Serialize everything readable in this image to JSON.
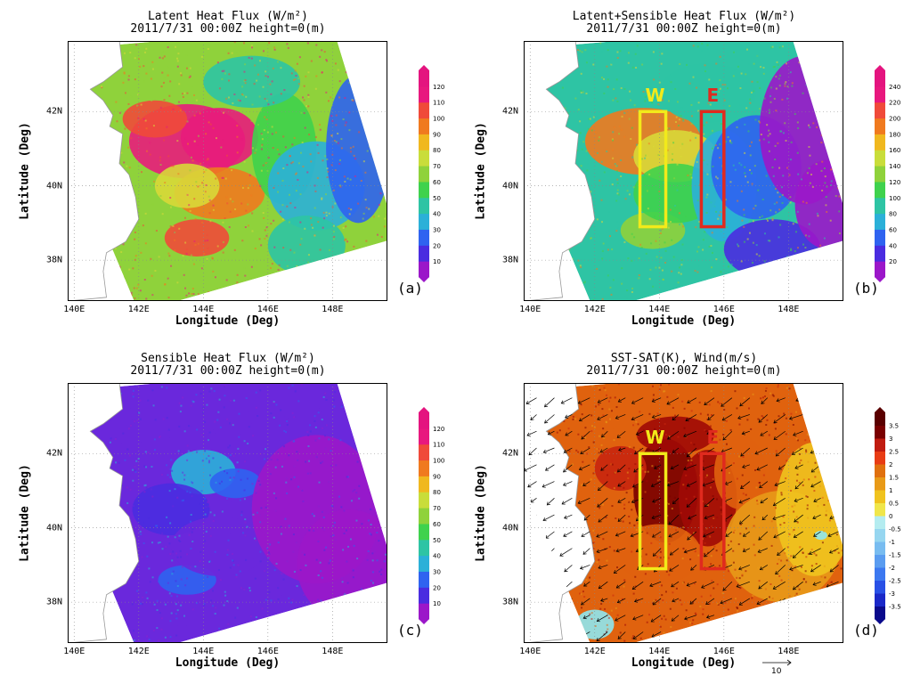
{
  "panels": [
    {
      "id": "a",
      "title": "Latent Heat Flux (W/m²)",
      "subtitle": "2011/7/31 00:00Z height=0(m)",
      "xlabel": "Longitude (Deg)",
      "ylabel": "Latitude (Deg)",
      "panel_label": "(a)",
      "colorbar": {
        "levels": [
          "10",
          "20",
          "30",
          "40",
          "50",
          "60",
          "70",
          "80",
          "90",
          "100",
          "110",
          "120"
        ],
        "colors": [
          "#9b17c9",
          "#4a2ce0",
          "#2f63f0",
          "#2bb0d8",
          "#2ec4a4",
          "#3fd24d",
          "#8fd23b",
          "#c9dd3a",
          "#f0b81f",
          "#f07a1f",
          "#f04a3a",
          "#e8187e",
          "#e4147f"
        ]
      },
      "field_colors": [
        "#e81c7c",
        "#f04a3a",
        "#f07a1f",
        "#d8d838",
        "#8fd23b",
        "#3fd24d",
        "#2ec4a4",
        "#2bb0d8",
        "#2f63f0"
      ]
    },
    {
      "id": "b",
      "title": "Latent+Sensible Heat Flux (W/m²)",
      "subtitle": "2011/7/31 00:00Z height=0(m)",
      "xlabel": "Longitude (Deg)",
      "ylabel": "Latitude (Deg)",
      "panel_label": "(b)",
      "colorbar": {
        "levels": [
          "20",
          "40",
          "60",
          "80",
          "100",
          "120",
          "140",
          "160",
          "180",
          "200",
          "220",
          "240"
        ],
        "colors": [
          "#9b17c9",
          "#4a2ce0",
          "#2f63f0",
          "#2bb0d8",
          "#2ec4a4",
          "#3fd24d",
          "#8fd23b",
          "#c9dd3a",
          "#f0b81f",
          "#f07a1f",
          "#f04a3a",
          "#e8187e",
          "#e4147f"
        ]
      },
      "field_colors": [
        "#f07a1f",
        "#d8d838",
        "#8fd23b",
        "#3fd24d",
        "#2ec4a4",
        "#2bb0d8",
        "#2f63f0",
        "#4a2ce0",
        "#9b17c9"
      ],
      "boxes": [
        {
          "label": "W",
          "color": "#f2ea1a",
          "lon": [
            143.4,
            144.2
          ],
          "lat": [
            38.9,
            42.0
          ]
        },
        {
          "label": "E",
          "color": "#e02a1e",
          "lon": [
            145.3,
            146.0
          ],
          "lat": [
            38.9,
            42.0
          ]
        }
      ]
    },
    {
      "id": "c",
      "title": "Sensible Heat Flux (W/m²)",
      "subtitle": "2011/7/31 00:00Z height=0(m)",
      "xlabel": "Longitude (Deg)",
      "ylabel": "Latitude (Deg)",
      "panel_label": "(c)",
      "colorbar": {
        "levels": [
          "10",
          "20",
          "30",
          "40",
          "50",
          "60",
          "70",
          "80",
          "90",
          "100",
          "110",
          "120"
        ],
        "colors": [
          "#9b17c9",
          "#4a2ce0",
          "#2f63f0",
          "#2bb0d8",
          "#2ec4a4",
          "#3fd24d",
          "#8fd23b",
          "#c9dd3a",
          "#f0b81f",
          "#f07a1f",
          "#f04a3a",
          "#e8187e",
          "#e4147f"
        ]
      },
      "field_colors": [
        "#2bb0d8",
        "#2f63f0",
        "#4a2ce0",
        "#6a28dc",
        "#8a20d0",
        "#9b17c9"
      ]
    },
    {
      "id": "d",
      "title": "SST-SAT(K), Wind(m/s)",
      "subtitle": "2011/7/31 00:00Z height=0(m)",
      "xlabel": "Longitude (Deg)",
      "ylabel": "Latitude (Deg)",
      "panel_label": "(d)",
      "colorbar": {
        "levels": [
          "-3.5",
          "-3",
          "-2.5",
          "-2",
          "-1.5",
          "-1",
          "-0.5",
          "0",
          "0.5",
          "1",
          "1.5",
          "2",
          "2.5",
          "3",
          "3.5"
        ],
        "colors": [
          "#0a0a8c",
          "#1a28c8",
          "#2850e6",
          "#3c78f0",
          "#5a9cf0",
          "#78bcf0",
          "#96d6f0",
          "#b4ecf0",
          "#f0e64a",
          "#f0c31e",
          "#e89a18",
          "#e0700e",
          "#e83c14",
          "#c01c10",
          "#7a0000",
          "#5a0000"
        ]
      },
      "field_colors": [
        "#7a0000",
        "#a00a05",
        "#c8260e",
        "#e0620e",
        "#e89a18",
        "#f0c31e",
        "#8fe8f0"
      ],
      "reference_vector_label": "10",
      "boxes": [
        {
          "label": "W",
          "color": "#f2ea1a",
          "lon": [
            143.4,
            144.2
          ],
          "lat": [
            38.9,
            42.0
          ]
        },
        {
          "label": "E",
          "color": "#e02a1e",
          "lon": [
            145.3,
            146.0
          ],
          "lat": [
            38.9,
            42.0
          ]
        }
      ]
    }
  ],
  "x_ticks": [
    "140E",
    "142E",
    "144E",
    "146E",
    "148E"
  ],
  "y_ticks": [
    "38N",
    "40N",
    "42N"
  ],
  "chart_data": [
    {
      "type": "heatmap",
      "title": "Latent Heat Flux (W/m²)",
      "xlabel": "Longitude (Deg)",
      "ylabel": "Latitude (Deg)",
      "xlim": [
        139.8,
        149.7
      ],
      "ylim": [
        36.9,
        43.9
      ],
      "x_ticks": [
        140,
        142,
        144,
        146,
        148
      ],
      "y_ticks": [
        38,
        40,
        42
      ],
      "colorbar_levels": [
        10,
        20,
        30,
        40,
        50,
        60,
        70,
        80,
        90,
        100,
        110,
        120
      ],
      "units": "W/m²"
    },
    {
      "type": "heatmap",
      "title": "Latent+Sensible Heat Flux (W/m²)",
      "xlabel": "Longitude (Deg)",
      "ylabel": "Latitude (Deg)",
      "xlim": [
        139.8,
        149.7
      ],
      "ylim": [
        36.9,
        43.9
      ],
      "x_ticks": [
        140,
        142,
        144,
        146,
        148
      ],
      "y_ticks": [
        38,
        40,
        42
      ],
      "colorbar_levels": [
        20,
        40,
        60,
        80,
        100,
        120,
        140,
        160,
        180,
        200,
        220,
        240
      ],
      "units": "W/m²",
      "annotations": [
        "W",
        "E"
      ]
    },
    {
      "type": "heatmap",
      "title": "Sensible Heat Flux (W/m²)",
      "xlabel": "Longitude (Deg)",
      "ylabel": "Latitude (Deg)",
      "xlim": [
        139.8,
        149.7
      ],
      "ylim": [
        36.9,
        43.9
      ],
      "x_ticks": [
        140,
        142,
        144,
        146,
        148
      ],
      "y_ticks": [
        38,
        40,
        42
      ],
      "colorbar_levels": [
        10,
        20,
        30,
        40,
        50,
        60,
        70,
        80,
        90,
        100,
        110,
        120
      ],
      "units": "W/m²"
    },
    {
      "type": "heatmap",
      "title": "SST-SAT(K), Wind(m/s)",
      "xlabel": "Longitude (Deg)",
      "ylabel": "Latitude (Deg)",
      "xlim": [
        139.8,
        149.7
      ],
      "ylim": [
        36.9,
        43.9
      ],
      "x_ticks": [
        140,
        142,
        144,
        146,
        148
      ],
      "y_ticks": [
        38,
        40,
        42
      ],
      "colorbar_levels": [
        -3.5,
        -3,
        -2.5,
        -2,
        -1.5,
        -1,
        -0.5,
        0,
        0.5,
        1,
        1.5,
        2,
        2.5,
        3,
        3.5
      ],
      "units": "K",
      "vector_field": "wind (m/s), predominantly from the northeast",
      "reference_vector": 10,
      "annotations": [
        "W",
        "E"
      ]
    }
  ]
}
